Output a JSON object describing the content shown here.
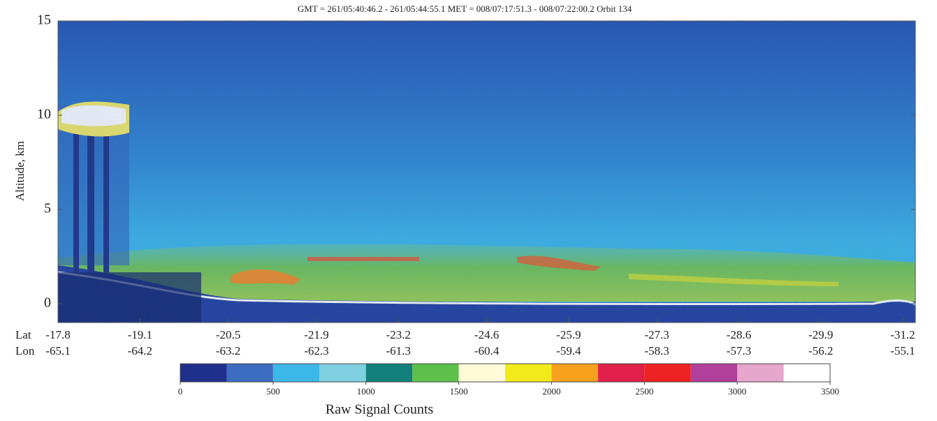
{
  "chart_data": {
    "type": "curtain",
    "title": "GMT = 261/05:40:46.2 - 261/05:44:55.1   MET = 008/07:17:51.3 - 008/07:22:00.2   Orbit 134",
    "y_label": "Altitude, km",
    "ylim": [
      -1,
      15
    ],
    "yticks": [
      0,
      5,
      10,
      15
    ],
    "xlim": [
      -17.8,
      -31.4
    ],
    "x_row_labels": [
      "Lat",
      "Lon"
    ],
    "xticks": [
      -17.8,
      -19.1,
      -20.5,
      -21.9,
      -23.2,
      -24.6,
      -25.9,
      -27.3,
      -28.6,
      -29.9,
      -31.2
    ],
    "lon": [
      -65.1,
      -64.2,
      -63.2,
      -62.3,
      -61.3,
      -60.4,
      -59.4,
      -58.3,
      -57.3,
      -56.2,
      -55.1
    ],
    "colorbar": {
      "label": "Raw Signal Counts",
      "lim": [
        0,
        3500
      ],
      "ticks": [
        0,
        500,
        1000,
        1500,
        2000,
        2500,
        3000,
        3500
      ],
      "colors": [
        "#1e2f8c",
        "#3b6cc0",
        "#3cb8e8",
        "#7fd0e0",
        "#11807a",
        "#5cc04a",
        "#fffbd8",
        "#f2ea1a",
        "#f7a01e",
        "#e0204a",
        "#ee2222",
        "#b0409c",
        "#e7a6cc",
        "#ffffff"
      ]
    }
  }
}
